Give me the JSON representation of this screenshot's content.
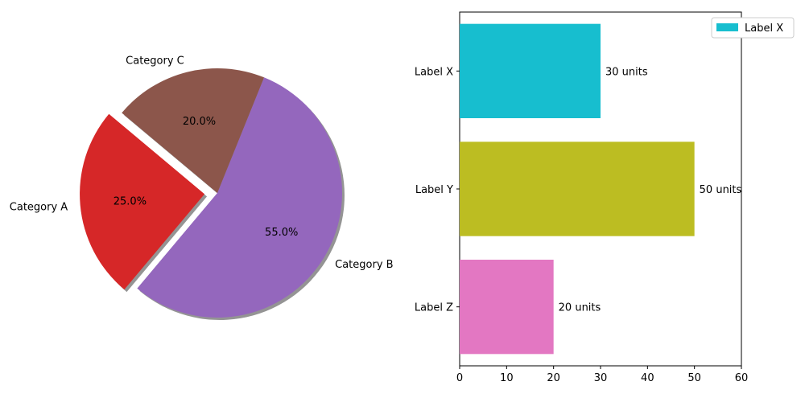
{
  "chart_data": [
    {
      "type": "pie",
      "labels": [
        "Category A",
        "Category B",
        "Category C"
      ],
      "values": [
        25,
        55,
        20
      ],
      "pct_labels": [
        "25.0%",
        "55.0%",
        "20.0%"
      ],
      "colors": [
        "#d62728",
        "#9467bd",
        "#8c564b"
      ],
      "exploded": [
        "Category A"
      ],
      "shadow": true
    },
    {
      "type": "bar",
      "orientation": "horizontal",
      "categories": [
        "Label X",
        "Label Y",
        "Label Z"
      ],
      "values": [
        30,
        50,
        20
      ],
      "value_labels": [
        "30 units",
        "50 units",
        "20 units"
      ],
      "colors": [
        "#17becf",
        "#bcbd22",
        "#e377c2"
      ],
      "xlim": [
        0,
        60
      ],
      "xticks": [
        "0",
        "10",
        "20",
        "30",
        "40",
        "50",
        "60"
      ],
      "legend": {
        "entries": [
          "Label X"
        ],
        "placement": "top-right",
        "color": "#17becf"
      }
    }
  ]
}
